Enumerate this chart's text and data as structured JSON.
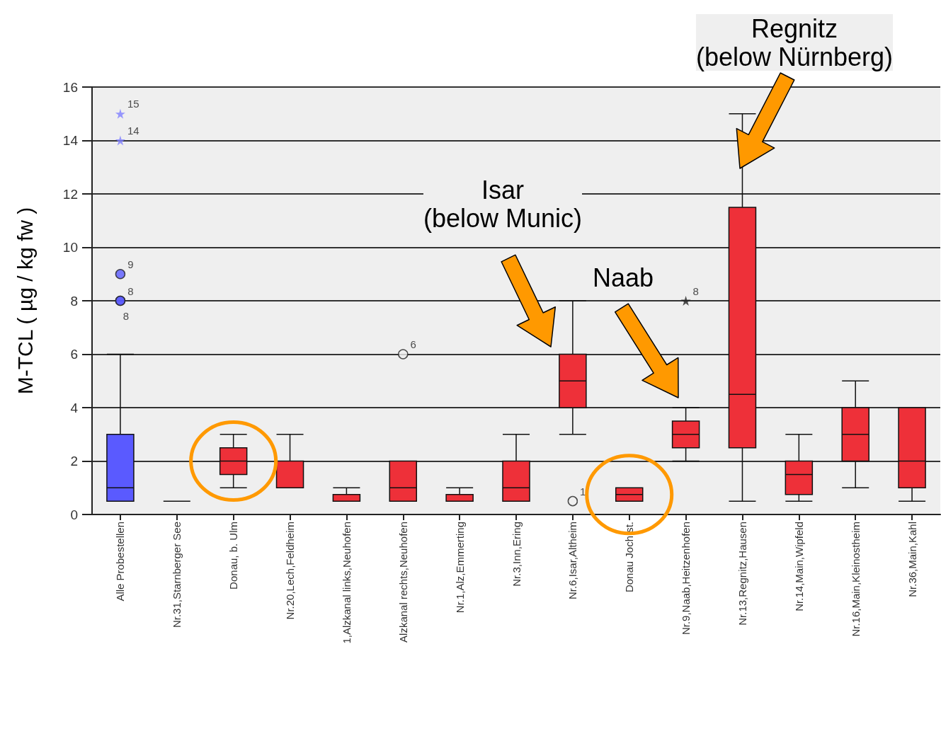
{
  "chart_data": {
    "type": "box",
    "ylabel": "M-TCL ( µg / kg fw )",
    "categories": [
      "Alle Probestellen",
      "Nr.31,Starnberger See",
      "Donau, b. Ulm",
      "Nr.20,Lech,Feldheim",
      "1,Alzkanal links,Neuhofen",
      "Alzkanal rechts,Neuhofen",
      "Nr.1,Alz,Emmerting",
      "Nr.3,Inn,Ering",
      "Nr.6,Isar,Altheim",
      "Donau Joch.st.",
      "Nr.9,Naab,Heitzenhofen",
      "Nr.13,Regnitz,Hausen",
      "Nr.14,Main,Wipfeld",
      "Nr.16,Main,Kleinostheim",
      "Nr.36,Main,Kahl"
    ],
    "colors": [
      "#5a5aff",
      "#111111",
      "#ee3039",
      "#ee3039",
      "#ee3039",
      "#ee3039",
      "#ee3039",
      "#ee3039",
      "#ee3039",
      "#ee3039",
      "#ee3039",
      "#ee3039",
      "#ee3039",
      "#ee3039",
      "#ee3039"
    ],
    "boxes": [
      {
        "low": 0.5,
        "q1": 0.5,
        "median": 1,
        "q3": 3,
        "high": 6
      },
      {
        "low": 0.5,
        "q1": 0.5,
        "median": 0.5,
        "q3": 0.5,
        "high": 0.5
      },
      {
        "low": 1,
        "q1": 1.5,
        "median": 2,
        "q3": 2.5,
        "high": 3
      },
      {
        "low": 1,
        "q1": 1,
        "median": 1,
        "q3": 2,
        "high": 3
      },
      {
        "low": 0.5,
        "q1": 0.5,
        "median": 0.5,
        "q3": 0.75,
        "high": 1
      },
      {
        "low": 0.5,
        "q1": 0.5,
        "median": 1,
        "q3": 2,
        "high": 2
      },
      {
        "low": 0.5,
        "q1": 0.5,
        "median": 0.5,
        "q3": 0.75,
        "high": 1
      },
      {
        "low": 0.5,
        "q1": 0.5,
        "median": 1,
        "q3": 2,
        "high": 3
      },
      {
        "low": 3,
        "q1": 4,
        "median": 5,
        "q3": 6,
        "high": 8
      },
      {
        "low": 0.5,
        "q1": 0.5,
        "median": 0.75,
        "q3": 1,
        "high": 1
      },
      {
        "low": 2,
        "q1": 2.5,
        "median": 3,
        "q3": 3.5,
        "high": 4
      },
      {
        "low": 0.5,
        "q1": 2.5,
        "median": 4.5,
        "q3": 11.5,
        "high": 15
      },
      {
        "low": 0.5,
        "q1": 0.75,
        "median": 1.5,
        "q3": 2,
        "high": 3
      },
      {
        "low": 1,
        "q1": 2,
        "median": 3,
        "q3": 4,
        "high": 5
      },
      {
        "low": 0.5,
        "q1": 1,
        "median": 2,
        "q3": 4,
        "high": 4
      }
    ],
    "series": [
      {
        "type": "scatter",
        "marker": "circle",
        "color": "#5a5aff",
        "x": [
          "Alle Probestellen",
          "Alle Probestellen",
          "Alle Probestellen"
        ],
        "values": [
          9,
          8,
          8
        ],
        "value_labels": [
          "9",
          "8",
          "8"
        ]
      },
      {
        "type": "scatter",
        "marker": "star",
        "color": "#8080ff",
        "x": [
          "Alle Probestellen",
          "Alle Probestellen"
        ],
        "values": [
          15,
          14
        ],
        "value_labels": [
          "15",
          "14"
        ]
      },
      {
        "type": "scatter",
        "marker": "circle",
        "color": "#efefef",
        "x": [
          "Alzkanal rechts,Neuhofen",
          "Nr.6,Isar,Altheim"
        ],
        "values": [
          6,
          0.5
        ],
        "value_labels": [
          "6",
          "1"
        ]
      },
      {
        "type": "scatter",
        "marker": "star",
        "color": "#222222",
        "x": [
          "Nr.9,Naab,Heitzenhofen"
        ],
        "values": [
          8
        ],
        "value_labels": [
          "8"
        ]
      }
    ],
    "annotations": [
      "Isar\n(below Munic)",
      "Naab",
      "Regnitz\n(below Nürnberg)"
    ],
    "ylim": [
      0,
      16
    ],
    "yticks": [
      0,
      2,
      4,
      6,
      8,
      10,
      12,
      14,
      16
    ],
    "grid": "y"
  }
}
